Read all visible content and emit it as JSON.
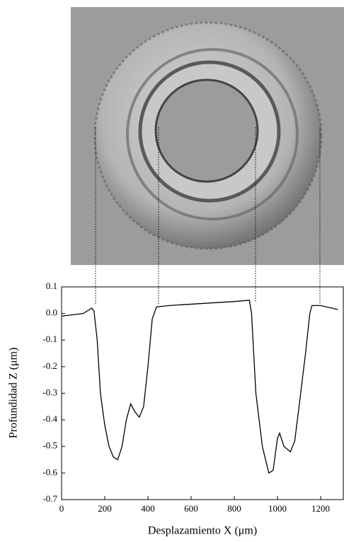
{
  "chart_data": {
    "type": "line",
    "x_label": "Desplazamiento X (μm)",
    "y_label": "Profundidad Z (μm)",
    "x": [
      0,
      50,
      100,
      140,
      150,
      165,
      180,
      200,
      220,
      240,
      260,
      280,
      300,
      320,
      340,
      360,
      380,
      400,
      420,
      440,
      500,
      600,
      700,
      800,
      870,
      880,
      900,
      930,
      960,
      980,
      1000,
      1010,
      1030,
      1060,
      1080,
      1100,
      1130,
      1150,
      1160,
      1200,
      1280
    ],
    "series": [
      {
        "color": "#000000",
        "values": [
          -0.01,
          -0.005,
          0.0,
          0.02,
          0.01,
          -0.1,
          -0.3,
          -0.42,
          -0.5,
          -0.54,
          -0.55,
          -0.5,
          -0.4,
          -0.34,
          -0.37,
          -0.39,
          -0.35,
          -0.2,
          -0.02,
          0.025,
          0.03,
          0.035,
          0.04,
          0.045,
          0.05,
          0.0,
          -0.3,
          -0.5,
          -0.6,
          -0.59,
          -0.47,
          -0.45,
          -0.5,
          -0.52,
          -0.48,
          -0.35,
          -0.15,
          0.0,
          0.03,
          0.03,
          0.015
        ]
      }
    ],
    "xlim": [
      0,
      1305
    ],
    "ylim": [
      -0.7,
      0.1
    ],
    "xticks": [
      0,
      200,
      400,
      600,
      800,
      1000,
      1200
    ],
    "yticks": [
      0.1,
      {
        "value": 0,
        "label": "0.0"
      },
      -0.1,
      -0.2,
      -0.3,
      -0.4,
      -0.5,
      -0.6,
      -0.7
    ]
  }
}
